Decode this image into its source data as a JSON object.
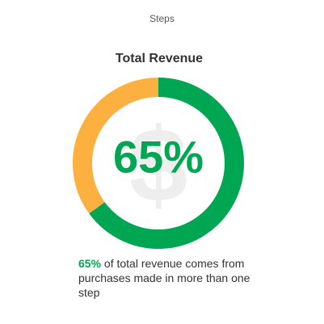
{
  "tab_label": "Steps",
  "chart_data": {
    "type": "pie",
    "title": "Total Revenue",
    "center_label": "65%",
    "icon": "dollar-sign-icon",
    "values": [
      65,
      35
    ],
    "colors": [
      "#00a651",
      "#fbb040"
    ]
  },
  "caption": {
    "highlight": "65%",
    "text": " of total revenue comes from purchases made in more than one step"
  },
  "colors": {
    "accent": "#00a651",
    "secondary": "#fbb040",
    "icon_watermark": "#eeeeee"
  }
}
